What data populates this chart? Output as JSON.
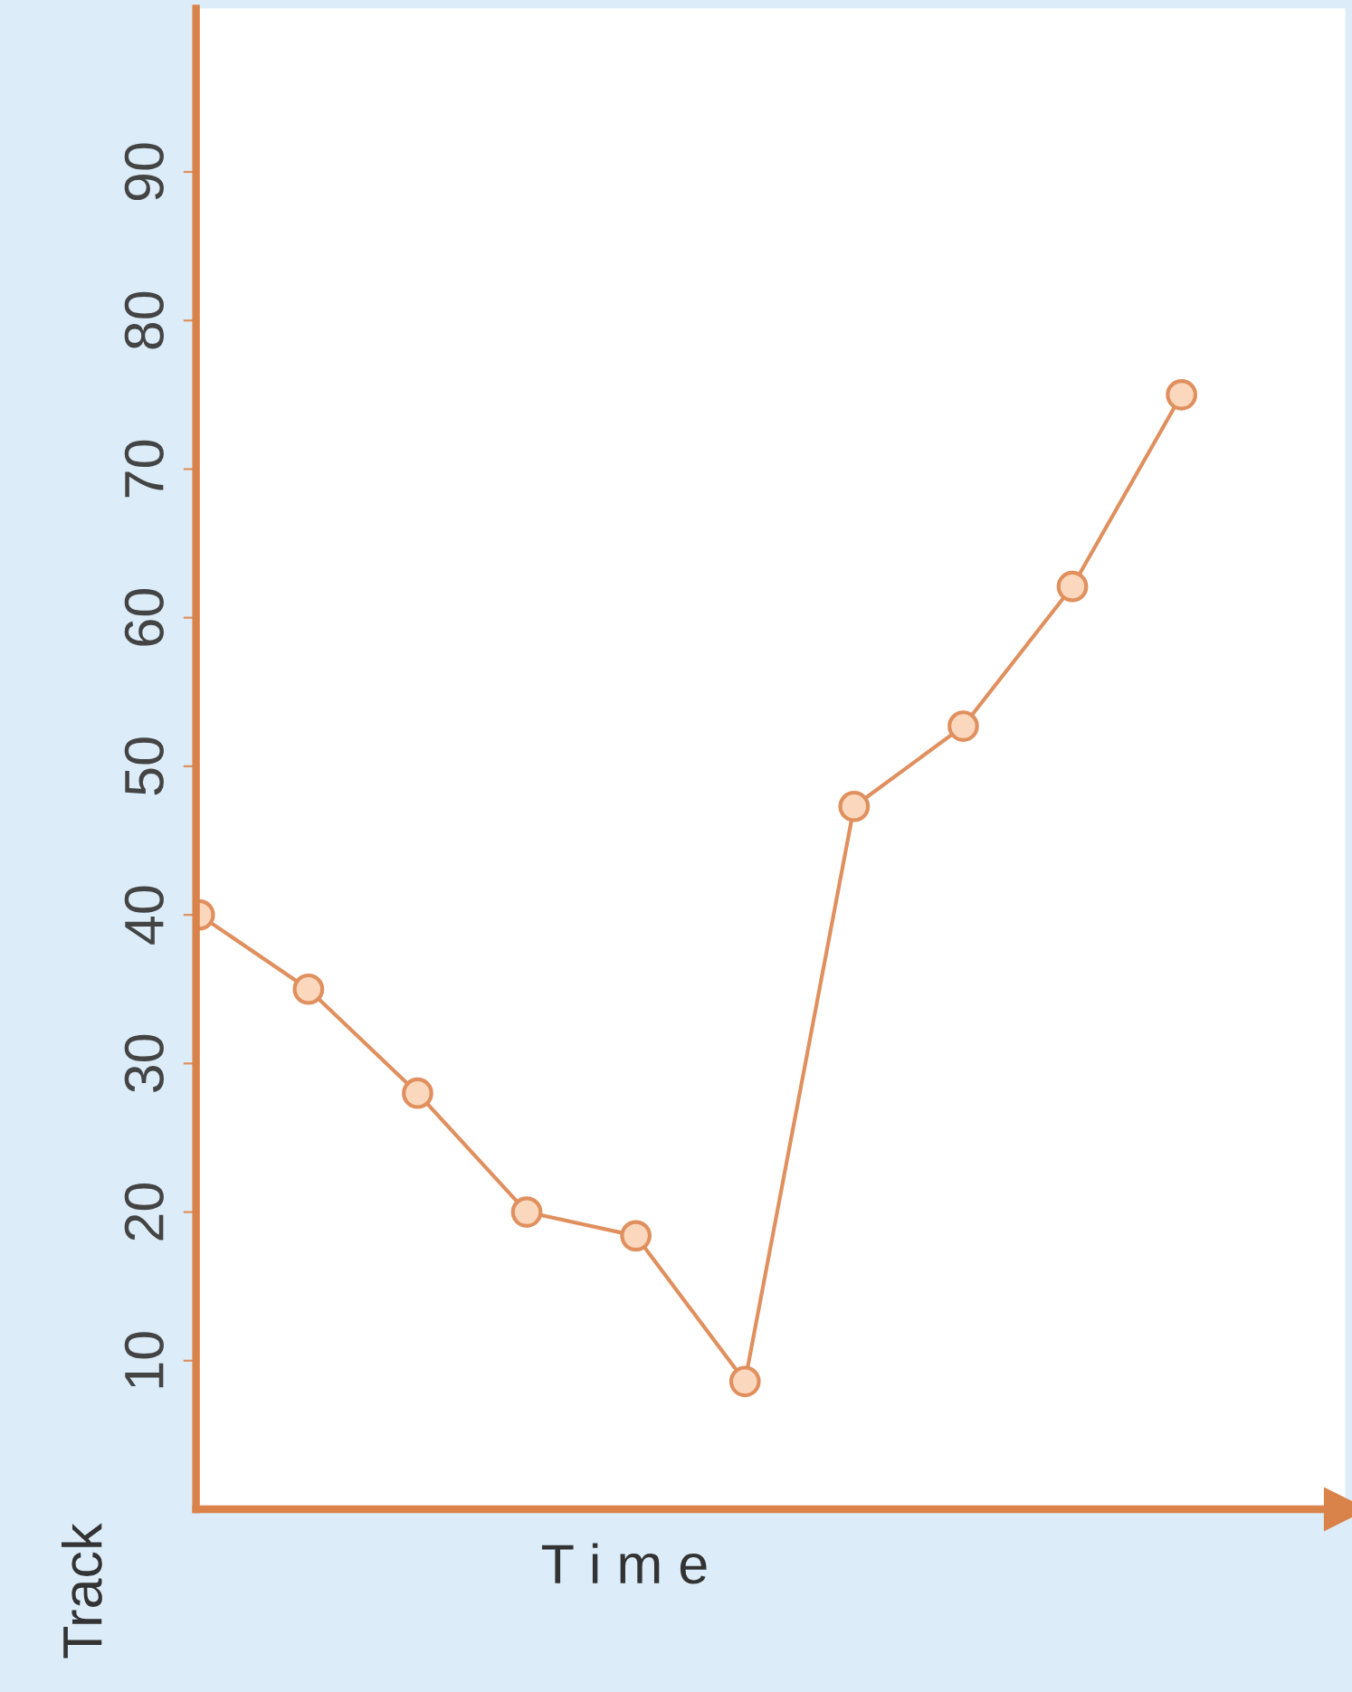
{
  "chart_data": {
    "type": "line",
    "xlabel": "T i m e",
    "ylabel": "Track",
    "categories": [
      null,
      null,
      null,
      null,
      null,
      null,
      null,
      null,
      null,
      null
    ],
    "series": [
      {
        "color": "#e0905e",
        "values": [
          40,
          35,
          28,
          20,
          18.4,
          8.6,
          47.3,
          52.7,
          62.1,
          75
        ]
      }
    ],
    "ylim": [
      0,
      101
    ],
    "yticks": [
      10,
      20,
      30,
      40,
      50,
      60,
      70,
      80,
      90
    ],
    "marker": "circle",
    "line_style": "solid",
    "grid": false,
    "legend": false
  }
}
